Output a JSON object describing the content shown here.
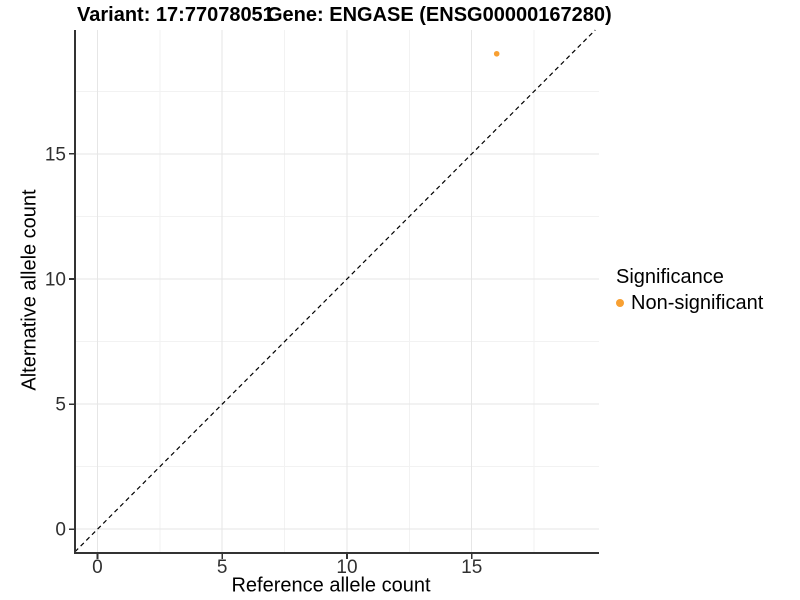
{
  "chart_data": {
    "type": "scatter",
    "titles": {
      "left": "Variant: 17:77078051",
      "right": "Gene: ENGASE (ENSG00000167280)"
    },
    "xlabel": "Reference allele count",
    "ylabel": "Alternative allele count",
    "xlim": [
      -0.9,
      20.1
    ],
    "ylim": [
      -0.95,
      19.95
    ],
    "x_ticks": [
      0,
      5,
      10,
      15
    ],
    "y_ticks": [
      0,
      5,
      10,
      15
    ],
    "x_minor_ticks": [
      2.5,
      7.5,
      12.5,
      17.5
    ],
    "y_minor_ticks": [
      2.5,
      7.5,
      12.5,
      17.5
    ],
    "grid": {
      "major_color": "#e6e6e6",
      "minor_color": "#f2f2f2",
      "background": "#ffffff"
    },
    "axis": {
      "line_color": "#333333",
      "tick_color": "#333333",
      "label_color": "#303030"
    },
    "identity_line": {
      "equation": "y = x",
      "style": "dashed",
      "color": "#000000"
    },
    "series": [
      {
        "name": "Non-significant",
        "color": "#f8a032",
        "points": [
          {
            "x": 16,
            "y": 19
          }
        ]
      }
    ],
    "legend": {
      "title": "Significance",
      "position": "right",
      "entries": [
        {
          "label": "Non-significant",
          "color": "#f8a032"
        }
      ]
    }
  }
}
